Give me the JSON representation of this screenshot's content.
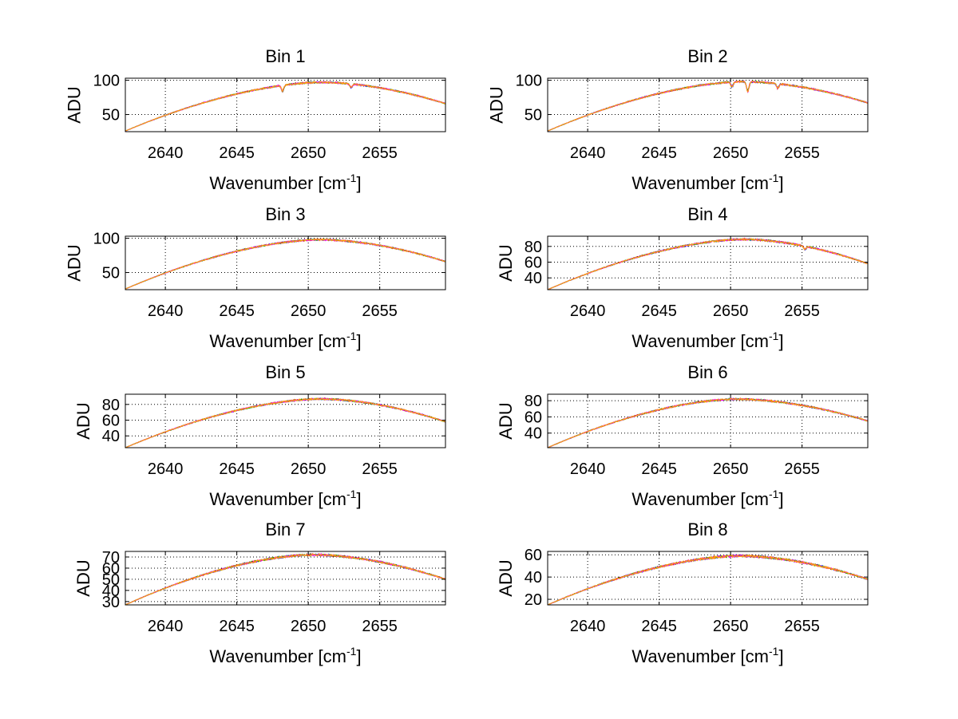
{
  "figure": {
    "background": "#ffffff",
    "grid": true,
    "grid_style": "dotted",
    "series_colors": [
      "#0000ff",
      "#cc0000",
      "#00aa00",
      "#ff00ff",
      "#ffa500"
    ]
  },
  "chart_data": [
    {
      "type": "line",
      "title": "Bin 1",
      "xlabel": "Wavenumber [cm",
      "xlabel_sup": "-1",
      "xlabel_tail": "]",
      "ylabel": "ADU",
      "xlim": [
        2637.2,
        2659.6
      ],
      "ylim": [
        25,
        103
      ],
      "xticks": [
        2640,
        2645,
        2650,
        2655
      ],
      "yticks": [
        50,
        100
      ],
      "profile": {
        "start": 26,
        "peak": 97,
        "center": 2650.9,
        "end": 66,
        "noise": 1.2
      },
      "dips": [
        [
          2648.2,
          8
        ],
        [
          2653.0,
          5
        ]
      ],
      "series_count": 5
    },
    {
      "type": "line",
      "title": "Bin 2",
      "xlabel": "Wavenumber [cm",
      "xlabel_sup": "-1",
      "xlabel_tail": "]",
      "ylabel": "ADU",
      "xlim": [
        2637.2,
        2659.6
      ],
      "ylim": [
        25,
        103
      ],
      "xticks": [
        2640,
        2645,
        2650,
        2655
      ],
      "yticks": [
        50,
        100
      ],
      "profile": {
        "start": 26,
        "peak": 98,
        "center": 2650.9,
        "end": 67,
        "noise": 1.2
      },
      "dips": [
        [
          2651.2,
          14
        ],
        [
          2650.1,
          7
        ],
        [
          2653.3,
          6
        ]
      ],
      "series_count": 5
    },
    {
      "type": "line",
      "title": "Bin 3",
      "xlabel": "Wavenumber [cm",
      "xlabel_sup": "-1",
      "xlabel_tail": "]",
      "ylabel": "ADU",
      "xlim": [
        2637.2,
        2659.6
      ],
      "ylim": [
        25,
        103
      ],
      "xticks": [
        2640,
        2645,
        2650,
        2655
      ],
      "yticks": [
        50,
        100
      ],
      "profile": {
        "start": 26,
        "peak": 98,
        "center": 2650.8,
        "end": 66,
        "noise": 1.2
      },
      "dips": [],
      "series_count": 5
    },
    {
      "type": "line",
      "title": "Bin 4",
      "xlabel": "Wavenumber [cm",
      "xlabel_sup": "-1",
      "xlabel_tail": "]",
      "ylabel": "ADU",
      "xlim": [
        2637.2,
        2659.6
      ],
      "ylim": [
        25,
        93
      ],
      "xticks": [
        2640,
        2645,
        2650,
        2655
      ],
      "yticks": [
        40,
        60,
        80
      ],
      "profile": {
        "start": 25,
        "peak": 89,
        "center": 2650.9,
        "end": 58,
        "noise": 1.1
      },
      "dips": [
        [
          2655.2,
          4
        ]
      ],
      "series_count": 5
    },
    {
      "type": "line",
      "title": "Bin 5",
      "xlabel": "Wavenumber [cm",
      "xlabel_sup": "-1",
      "xlabel_tail": "]",
      "ylabel": "ADU",
      "xlim": [
        2637.2,
        2659.6
      ],
      "ylim": [
        25,
        93
      ],
      "xticks": [
        2640,
        2645,
        2650,
        2655
      ],
      "yticks": [
        40,
        60,
        80
      ],
      "profile": {
        "start": 25,
        "peak": 87,
        "center": 2650.8,
        "end": 58,
        "noise": 1.1
      },
      "dips": [],
      "series_count": 5
    },
    {
      "type": "line",
      "title": "Bin 6",
      "xlabel": "Wavenumber [cm",
      "xlabel_sup": "-1",
      "xlabel_tail": "]",
      "ylabel": "ADU",
      "xlim": [
        2637.2,
        2659.6
      ],
      "ylim": [
        22,
        88
      ],
      "xticks": [
        2640,
        2645,
        2650,
        2655
      ],
      "yticks": [
        40,
        60,
        80
      ],
      "profile": {
        "start": 22,
        "peak": 82,
        "center": 2650.4,
        "end": 55,
        "noise": 1.1
      },
      "dips": [],
      "series_count": 5
    },
    {
      "type": "line",
      "title": "Bin 7",
      "xlabel": "Wavenumber [cm",
      "xlabel_sup": "-1",
      "xlabel_tail": "]",
      "ylabel": "ADU",
      "xlim": [
        2637.2,
        2659.6
      ],
      "ylim": [
        27,
        75
      ],
      "xticks": [
        2640,
        2645,
        2650,
        2655
      ],
      "yticks": [
        30,
        40,
        50,
        60,
        70
      ],
      "ytick_labels": [
        "30",
        "40",
        "50",
        "60",
        "70"
      ],
      "profile": {
        "start": 27,
        "peak": 72,
        "center": 2650.3,
        "end": 50,
        "noise": 0.9
      },
      "dips": [],
      "series_count": 5
    },
    {
      "type": "line",
      "title": "Bin 8",
      "xlabel": "Wavenumber [cm",
      "xlabel_sup": "-1",
      "xlabel_tail": "]",
      "ylabel": "ADU",
      "xlim": [
        2637.2,
        2659.6
      ],
      "ylim": [
        15,
        63
      ],
      "xticks": [
        2640,
        2645,
        2650,
        2655
      ],
      "yticks": [
        20,
        40,
        60
      ],
      "profile": {
        "start": 15,
        "peak": 59,
        "center": 2650.6,
        "end": 38,
        "noise": 1.0
      },
      "dips": [],
      "series_count": 5
    }
  ]
}
